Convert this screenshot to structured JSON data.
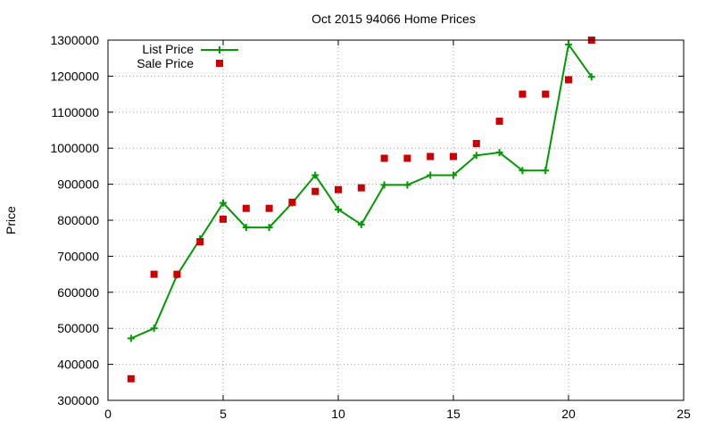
{
  "chart_data": {
    "type": "line",
    "title": "Oct 2015 94066 Home Prices",
    "xlabel": "",
    "ylabel": "Price",
    "xlim": [
      0,
      25
    ],
    "ylim": [
      300000,
      1300000
    ],
    "xticks": [
      0,
      5,
      10,
      15,
      20,
      25
    ],
    "yticks": [
      300000,
      400000,
      500000,
      600000,
      700000,
      800000,
      900000,
      1000000,
      1100000,
      1200000,
      1300000
    ],
    "grid": true,
    "legend_position": "top-left",
    "series": [
      {
        "name": "List Price",
        "style": "line-with-plus-markers",
        "color": "#009900",
        "x": [
          1,
          2,
          3,
          4,
          5,
          6,
          7,
          8,
          9,
          10,
          11,
          12,
          13,
          14,
          15,
          16,
          17,
          18,
          19,
          20,
          21
        ],
        "values": [
          472000,
          500000,
          648000,
          748000,
          848000,
          780000,
          780000,
          848000,
          925000,
          830000,
          788000,
          898000,
          898000,
          925000,
          925000,
          980000,
          988000,
          938000,
          938000,
          1288000,
          1198000
        ]
      },
      {
        "name": "Sale Price",
        "style": "square-markers",
        "color": "#cc0000",
        "x": [
          1,
          2,
          3,
          4,
          5,
          6,
          7,
          8,
          9,
          10,
          11,
          12,
          13,
          14,
          15,
          16,
          17,
          18,
          19,
          20,
          21
        ],
        "values": [
          360000,
          650000,
          650000,
          740000,
          803000,
          833000,
          833000,
          850000,
          880000,
          885000,
          890000,
          972000,
          972000,
          977000,
          977000,
          1013000,
          1075000,
          1150000,
          1150000,
          1190000,
          1300000
        ]
      }
    ]
  }
}
